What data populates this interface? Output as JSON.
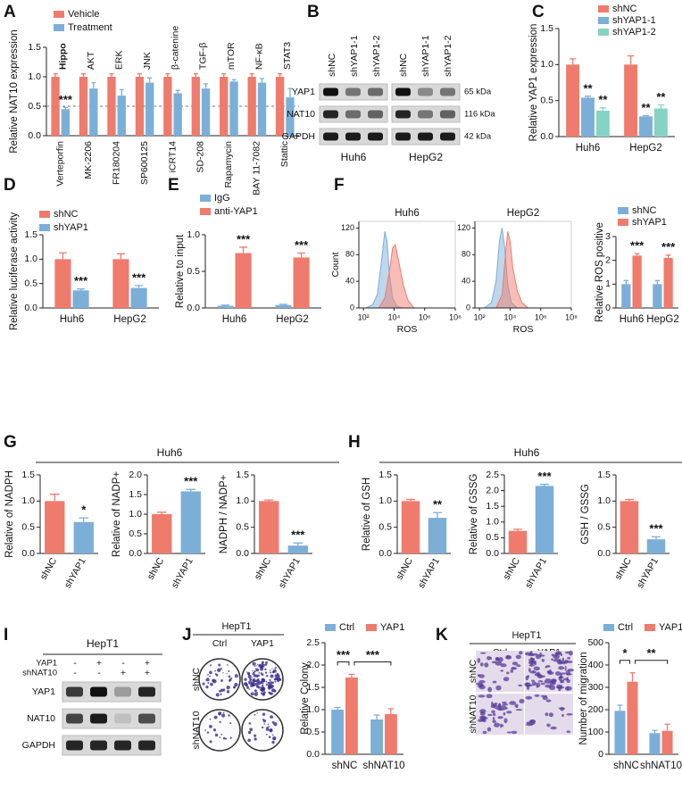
{
  "panels": [
    "A",
    "B",
    "C",
    "D",
    "E",
    "F",
    "G",
    "H",
    "I",
    "J",
    "K"
  ],
  "panel_titles": {
    "G": "Huh6",
    "H": "Huh6"
  },
  "blots": {
    "B": {
      "lanes": [
        "shNC",
        "shYAP1-1",
        "shYAP1-2",
        "shNC",
        "shYAP1-1",
        "shYAP1-2"
      ],
      "cells": [
        "Huh6",
        "HepG2"
      ],
      "proteins": [
        "YAP1",
        "NAT10",
        "GAPDH"
      ],
      "sizes": [
        "65 kDa",
        "116 kDa",
        "42 kDa"
      ]
    },
    "I": {
      "title": "HepT1",
      "conditions": [
        {
          "name": "YAP1",
          "signs": [
            "-",
            "+",
            "-",
            "+"
          ]
        },
        {
          "name": "shNAT10",
          "signs": [
            "-",
            "-",
            "+",
            "+"
          ]
        }
      ],
      "proteins": [
        "YAP1",
        "NAT10",
        "GAPDH"
      ]
    }
  },
  "images": {
    "J": {
      "title": "HepT1",
      "columns": [
        "Ctrl",
        "YAP1"
      ],
      "rows": [
        "shNC",
        "shNAT10"
      ]
    },
    "K": {
      "title": "HepT1",
      "columns": [
        "Ctrl",
        "YAP1"
      ],
      "rows": [
        "shNC",
        "shNAT10"
      ]
    }
  },
  "chart_data": [
    {
      "type": "bar",
      "y_label": "Relative NAT10 expression",
      "categories": [
        "Verteporfin",
        "MK-2206",
        "FR180204",
        "SP600125",
        "iCRT14",
        "SD-208",
        "Rapamycin",
        "BAY 11-7082",
        "Stattic"
      ],
      "pathways": [
        "Hippo",
        "AKT",
        "ERK",
        "JNK",
        "β-catenine",
        "TGF-β",
        "mTOR",
        "NF-κB",
        "STAT3"
      ],
      "series": [
        {
          "name": "Vehicle",
          "color": "#ef7b6d",
          "values": [
            1,
            1,
            1,
            1,
            1,
            1,
            1,
            1,
            1
          ],
          "errors": [
            0.05,
            0.05,
            0.05,
            0.05,
            0.05,
            0.05,
            0.05,
            0.05,
            0.05
          ]
        },
        {
          "name": "Treatment",
          "color": "#7bafd8",
          "values": [
            0.45,
            0.8,
            0.68,
            0.9,
            0.72,
            0.8,
            0.92,
            0.9,
            0.65
          ],
          "errors": [
            0.03,
            0.1,
            0.1,
            0.08,
            0.05,
            0.08,
            0.03,
            0.07,
            0.15
          ],
          "sig": [
            "***",
            null,
            null,
            null,
            null,
            null,
            null,
            null,
            null
          ]
        }
      ],
      "ref_line": 0.5,
      "ylim": [
        0,
        1.5
      ],
      "yticks": [
        {
          "value": 0,
          "label": "0.0"
        },
        0.5,
        {
          "value": 1,
          "label": "1.0"
        },
        1.5
      ]
    },
    {
      "type": "bar",
      "y_label": "Relative YAP1 expression",
      "categories": [
        "Huh6",
        "HepG2"
      ],
      "series": [
        {
          "name": "shNC",
          "color": "#ef7b6d",
          "values": [
            1,
            1
          ],
          "errors": [
            0.08,
            0.12
          ]
        },
        {
          "name": "shYAP1-1",
          "color": "#7bafd8",
          "values": [
            0.54,
            0.28
          ],
          "errors": [
            0.02,
            0.01
          ],
          "sig": [
            "**",
            "**"
          ]
        },
        {
          "name": "shYAP1-2",
          "color": "#86d3c3",
          "values": [
            0.36,
            0.39
          ],
          "errors": [
            0.04,
            0.05
          ],
          "sig": [
            "**",
            "**"
          ]
        }
      ],
      "ylim": [
        0,
        1.5
      ],
      "yticks": [
        {
          "value": 0,
          "label": "0.0"
        },
        0.5,
        {
          "value": 1,
          "label": "1.0"
        },
        1.5
      ]
    },
    {
      "type": "bar",
      "y_label": "Relative luciferase activity",
      "categories": [
        "Huh6",
        "HepG2"
      ],
      "series": [
        {
          "name": "shNC",
          "color": "#ef7b6d",
          "values": [
            1,
            1
          ],
          "errors": [
            0.13,
            0.11
          ]
        },
        {
          "name": "shYAP1",
          "color": "#7bafd8",
          "values": [
            0.36,
            0.41
          ],
          "errors": [
            0.03,
            0.05
          ],
          "sig": [
            "***",
            "***"
          ]
        }
      ],
      "ylim": [
        0,
        1.5
      ],
      "yticks": [
        {
          "value": 0,
          "label": "0.0"
        },
        0.5,
        {
          "value": 1,
          "label": "1.0"
        },
        1.5
      ]
    },
    {
      "type": "bar",
      "y_label": "Relative to input",
      "categories": [
        "Huh6",
        "HepG2"
      ],
      "series": [
        {
          "name": "IgG",
          "color": "#7bafd8",
          "values": [
            0.03,
            0.04
          ],
          "errors": [
            0.01,
            0.01
          ]
        },
        {
          "name": "anti-YAP1",
          "color": "#ef7b6d",
          "values": [
            0.75,
            0.69
          ],
          "errors": [
            0.08,
            0.06
          ],
          "sig": [
            "***",
            "***"
          ]
        }
      ],
      "ylim": [
        0,
        1
      ],
      "yticks": [
        {
          "value": 0,
          "label": "0.0"
        },
        0.5,
        {
          "value": 1,
          "label": "1.0"
        }
      ]
    },
    {
      "type": "area",
      "title": "Huh6",
      "y_label": "Count",
      "x_label": "ROS",
      "xscale": "log",
      "xlim": [
        50,
        100000000
      ],
      "xticks": [
        {
          "value": 100,
          "label": "10²"
        },
        {
          "value": 10000,
          "label": "10⁴"
        },
        {
          "value": 1000000,
          "label": "10⁶"
        },
        {
          "value": 100000000,
          "label": "10⁸"
        }
      ],
      "ylim": [
        0,
        130
      ],
      "yticks": [
        0,
        40,
        80,
        120
      ],
      "series": [
        {
          "color": "#7bafd8",
          "x": [
            150,
            400,
            800,
            1500,
            2500,
            3500,
            5000,
            8000,
            15000,
            30000
          ],
          "values": [
            0,
            5,
            20,
            70,
            115,
            100,
            50,
            15,
            3,
            0
          ]
        },
        {
          "color": "#ef7b6d",
          "x": [
            1000,
            2500,
            5000,
            8000,
            12000,
            20000,
            40000,
            80000,
            200000
          ],
          "values": [
            0,
            15,
            55,
            90,
            95,
            70,
            35,
            12,
            0
          ]
        }
      ]
    },
    {
      "type": "area",
      "title": "HepG2",
      "x_label": "ROS",
      "xscale": "log",
      "xlim": [
        50,
        100000000
      ],
      "xticks": [
        {
          "value": 100,
          "label": "10²"
        },
        {
          "value": 10000,
          "label": "10⁴"
        },
        {
          "value": 1000000,
          "label": "10⁶"
        },
        {
          "value": 100000000,
          "label": "10⁸"
        }
      ],
      "ylim": [
        0,
        130
      ],
      "yticks": [
        0,
        40,
        80,
        120
      ],
      "series": [
        {
          "color": "#7bafd8",
          "x": [
            200,
            600,
            1200,
            2000,
            3000,
            4500,
            7000,
            12000,
            30000
          ],
          "values": [
            0,
            8,
            40,
            100,
            120,
            90,
            35,
            8,
            0
          ]
        },
        {
          "color": "#ef7b6d",
          "x": [
            1200,
            3000,
            5000,
            7000,
            10000,
            15000,
            30000,
            60000,
            150000
          ],
          "values": [
            0,
            20,
            80,
            115,
            100,
            60,
            25,
            8,
            0
          ]
        }
      ]
    },
    {
      "type": "bar",
      "y_label": "Relative ROS positive",
      "categories": [
        "Huh6",
        "HepG2"
      ],
      "series": [
        {
          "name": "shNC",
          "color": "#7bafd8",
          "values": [
            1,
            1
          ],
          "errors": [
            0.15,
            0.15
          ]
        },
        {
          "name": "shYAP1",
          "color": "#ef7b6d",
          "values": [
            2.2,
            2.1
          ],
          "errors": [
            0.08,
            0.12
          ],
          "sig": [
            "***",
            "***"
          ]
        }
      ],
      "ylim": [
        0,
        3
      ],
      "yticks": [
        0,
        1,
        2,
        3
      ]
    },
    {
      "type": "bar",
      "y_label": "Relative of NADPH",
      "categories": [
        "shNC",
        "shYAP1"
      ],
      "series": [
        {
          "colors": [
            "#ef7b6d",
            "#7bafd8"
          ],
          "values": [
            1,
            0.6
          ],
          "errors": [
            0.13,
            0.08
          ],
          "sig": [
            null,
            "*"
          ]
        }
      ],
      "ylim": [
        0,
        1.5
      ],
      "yticks": [
        {
          "value": 0,
          "label": "0.0"
        },
        0.5,
        {
          "value": 1,
          "label": "1.0"
        },
        1.5
      ]
    },
    {
      "type": "bar",
      "y_label": "Relative of NADP+",
      "categories": [
        "shNC",
        "shYAP1"
      ],
      "series": [
        {
          "colors": [
            "#ef7b6d",
            "#7bafd8"
          ],
          "values": [
            1,
            1.58
          ],
          "errors": [
            0.05,
            0.05
          ],
          "sig": [
            null,
            "***"
          ]
        }
      ],
      "ylim": [
        0,
        2
      ],
      "yticks": [
        {
          "value": 0,
          "label": "0.0"
        },
        0.5,
        {
          "value": 1,
          "label": "1.0"
        },
        1.5,
        {
          "value": 2,
          "label": "2.0"
        }
      ]
    },
    {
      "type": "bar",
      "y_label": "NADPH / NADP+",
      "categories": [
        "shNC",
        "shYAP1"
      ],
      "series": [
        {
          "colors": [
            "#ef7b6d",
            "#7bafd8"
          ],
          "values": [
            1,
            0.15
          ],
          "errors": [
            0.02,
            0.05
          ],
          "sig": [
            null,
            "***"
          ]
        }
      ],
      "ylim": [
        0,
        1.5
      ],
      "yticks": [
        {
          "value": 0,
          "label": "0.0"
        },
        0.5,
        {
          "value": 1,
          "label": "1.0"
        },
        1.5
      ]
    },
    {
      "type": "bar",
      "y_label": "Relative of GSH",
      "categories": [
        "shNC",
        "shYAP1"
      ],
      "series": [
        {
          "colors": [
            "#ef7b6d",
            "#7bafd8"
          ],
          "values": [
            1,
            0.68
          ],
          "errors": [
            0.03,
            0.1
          ],
          "sig": [
            null,
            "**"
          ]
        }
      ],
      "ylim": [
        0,
        1.5
      ],
      "yticks": [
        {
          "value": 0,
          "label": "0.0"
        },
        0.5,
        {
          "value": 1,
          "label": "1.0"
        },
        1.5
      ]
    },
    {
      "type": "bar",
      "y_label": "Relative of GSSG",
      "categories": [
        "shNC",
        "shYAP1"
      ],
      "series": [
        {
          "colors": [
            "#ef7b6d",
            "#7bafd8"
          ],
          "values": [
            0.72,
            2.15
          ],
          "errors": [
            0.05,
            0.05
          ],
          "sig": [
            null,
            "***"
          ]
        }
      ],
      "ylim": [
        0,
        2.5
      ],
      "yticks": [
        {
          "value": 0,
          "label": "0.0"
        },
        0.5,
        {
          "value": 1,
          "label": "1.0"
        },
        1.5,
        {
          "value": 2,
          "label": "2.0"
        },
        2.5
      ]
    },
    {
      "type": "bar",
      "y_label": "GSH / GSSG",
      "categories": [
        "shNC",
        "shYAP1"
      ],
      "series": [
        {
          "colors": [
            "#ef7b6d",
            "#7bafd8"
          ],
          "values": [
            1,
            0.27
          ],
          "errors": [
            0.03,
            0.05
          ],
          "sig": [
            null,
            "***"
          ]
        }
      ],
      "ylim": [
        0,
        1.5
      ],
      "yticks": [
        {
          "value": 0,
          "label": "0.0"
        },
        0.5,
        {
          "value": 1,
          "label": "1.0"
        },
        1.5
      ]
    },
    {
      "type": "bar",
      "y_label": "Relative Colony",
      "categories": [
        "shNC",
        "shNAT10"
      ],
      "series": [
        {
          "name": "Ctrl",
          "color": "#7bafd8",
          "values": [
            1,
            0.78
          ],
          "errors": [
            0.05,
            0.1
          ]
        },
        {
          "name": "YAP1",
          "color": "#ef7b6d",
          "values": [
            1.72,
            0.9
          ],
          "errors": [
            0.07,
            0.12
          ]
        }
      ],
      "brackets": [
        "***",
        "***"
      ],
      "ylim": [
        0,
        2.5
      ],
      "yticks": [
        {
          "value": 0,
          "label": "0.0"
        },
        0.5,
        {
          "value": 1,
          "label": "1.0"
        },
        1.5,
        {
          "value": 2,
          "label": "2.0"
        },
        2.5
      ]
    },
    {
      "type": "bar",
      "y_label": "Number of migration",
      "categories": [
        "shNC",
        "shNAT10"
      ],
      "series": [
        {
          "name": "Ctrl",
          "color": "#7bafd8",
          "values": [
            195,
            95
          ],
          "errors": [
            25,
            12
          ]
        },
        {
          "name": "YAP1",
          "color": "#ef7b6d",
          "values": [
            325,
            105
          ],
          "errors": [
            40,
            30
          ]
        }
      ],
      "brackets": [
        "*",
        "**"
      ],
      "ylim": [
        0,
        500
      ],
      "yticks": [
        0,
        100,
        200,
        300,
        400,
        500
      ]
    }
  ]
}
